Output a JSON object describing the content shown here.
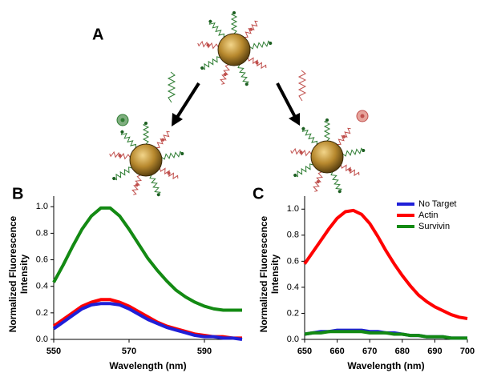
{
  "diagram": {
    "label": "A"
  },
  "chart_data": [
    {
      "type": "line",
      "panel_label": "B",
      "xlabel": "Wavelength (nm)",
      "ylabel": [
        "Normalized Fluorescence",
        "Intensity"
      ],
      "x": [
        550,
        552.5,
        555,
        557.5,
        560,
        562.5,
        565,
        567.5,
        570,
        572.5,
        575,
        577.5,
        580,
        582.5,
        585,
        587.5,
        590,
        592.5,
        595,
        597.5,
        600
      ],
      "xlim": [
        550,
        600
      ],
      "xticks": [
        550,
        570,
        590
      ],
      "ylim": [
        0,
        1.08
      ],
      "yticks": [
        {
          "value": 0,
          "label": "0.0"
        },
        0.2,
        0.4,
        0.6,
        0.8,
        {
          "value": 1,
          "label": "1.0"
        }
      ],
      "series": [
        {
          "color": "#138a13",
          "values": [
            0.43,
            0.56,
            0.7,
            0.83,
            0.93,
            0.99,
            0.99,
            0.93,
            0.83,
            0.72,
            0.61,
            0.52,
            0.44,
            0.37,
            0.32,
            0.28,
            0.25,
            0.23,
            0.22,
            0.22,
            0.22
          ]
        },
        {
          "color": "#ff0000",
          "values": [
            0.1,
            0.15,
            0.2,
            0.25,
            0.28,
            0.3,
            0.3,
            0.28,
            0.25,
            0.21,
            0.17,
            0.13,
            0.1,
            0.08,
            0.06,
            0.04,
            0.03,
            0.02,
            0.02,
            0.01,
            0.01
          ]
        },
        {
          "color": "#1f1fd8",
          "values": [
            0.08,
            0.13,
            0.18,
            0.23,
            0.26,
            0.27,
            0.27,
            0.26,
            0.23,
            0.19,
            0.15,
            0.12,
            0.09,
            0.07,
            0.05,
            0.03,
            0.02,
            0.02,
            0.01,
            0.01,
            0.0
          ]
        }
      ]
    },
    {
      "type": "line",
      "panel_label": "C",
      "xlabel": "Wavelength (nm)",
      "ylabel": [
        "Normalized Fluorescence",
        "Intensity"
      ],
      "x": [
        650,
        652.5,
        655,
        657.5,
        660,
        662.5,
        665,
        667.5,
        670,
        672.5,
        675,
        677.5,
        680,
        682.5,
        685,
        687.5,
        690,
        692.5,
        695,
        697.5,
        700
      ],
      "xlim": [
        650,
        700
      ],
      "xticks": [
        650,
        660,
        670,
        680,
        690,
        700
      ],
      "ylim": [
        0,
        1.1
      ],
      "yticks": [
        {
          "value": 0,
          "label": "0.0"
        },
        0.2,
        0.4,
        0.6,
        0.8,
        {
          "value": 1,
          "label": "1.0"
        }
      ],
      "legend": "upper right",
      "series": [
        {
          "name": "No Target",
          "color": "#1f1fd8",
          "values": [
            0.04,
            0.05,
            0.06,
            0.06,
            0.07,
            0.07,
            0.07,
            0.07,
            0.06,
            0.06,
            0.05,
            0.05,
            0.04,
            0.03,
            0.03,
            0.02,
            0.02,
            0.02,
            0.01,
            0.01,
            0.01
          ]
        },
        {
          "name": "Actin",
          "color": "#ff0000",
          "values": [
            0.58,
            0.67,
            0.76,
            0.85,
            0.93,
            0.98,
            0.99,
            0.96,
            0.89,
            0.79,
            0.68,
            0.58,
            0.49,
            0.41,
            0.34,
            0.29,
            0.25,
            0.22,
            0.19,
            0.17,
            0.16
          ]
        },
        {
          "name": "Survivin",
          "color": "#138a13",
          "values": [
            0.04,
            0.05,
            0.05,
            0.06,
            0.06,
            0.06,
            0.06,
            0.06,
            0.05,
            0.05,
            0.05,
            0.04,
            0.04,
            0.03,
            0.03,
            0.02,
            0.02,
            0.02,
            0.01,
            0.01,
            0.01
          ]
        }
      ]
    }
  ]
}
